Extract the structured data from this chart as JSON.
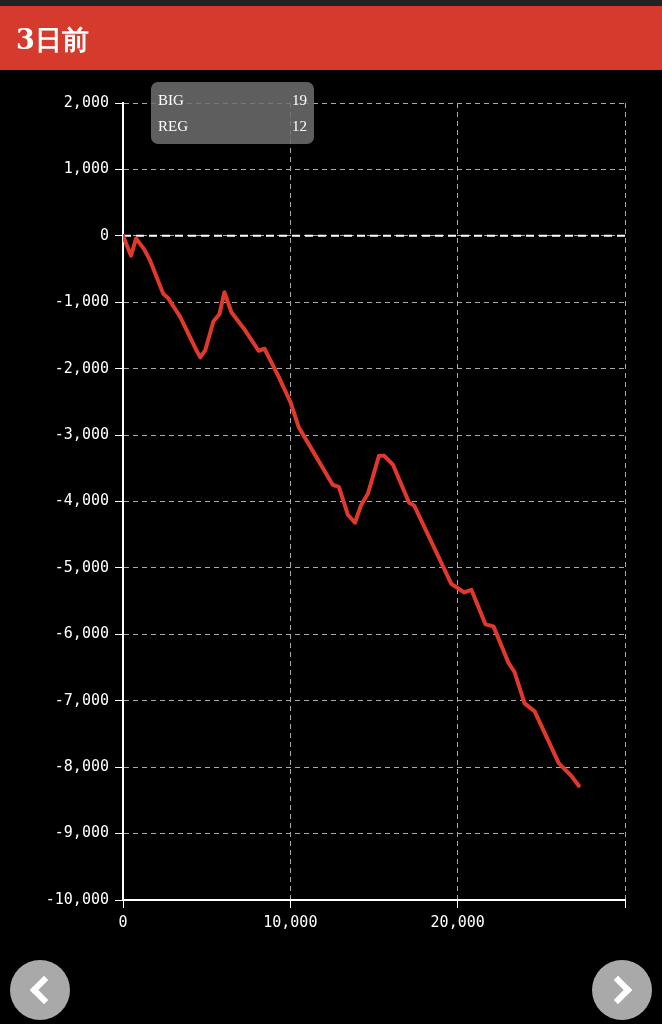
{
  "chart_data": {
    "type": "line",
    "title": "3日前",
    "annotations": [
      "BIG",
      "19",
      "REG",
      "12"
    ],
    "x": [
      0,
      480,
      780,
      1260,
      1620,
      2400,
      2700,
      3420,
      4380,
      4620,
      4920,
      5400,
      5760,
      6060,
      6480,
      7320,
      8100,
      8460,
      9300,
      10020,
      10500,
      12540,
      12900,
      13440,
      13860,
      14220,
      14640,
      15300,
      15600,
      16140,
      17100,
      17400,
      19620,
      20400,
      20820,
      21660,
      22140,
      23040,
      23400,
      24000,
      24600,
      26040,
      26820,
      27240
    ],
    "series": [
      {
        "color": "#e0392b",
        "values": [
          0,
          -300,
          -40,
          -200,
          -370,
          -870,
          -940,
          -1220,
          -1720,
          -1830,
          -1720,
          -1290,
          -1180,
          -850,
          -1150,
          -1430,
          -1730,
          -1700,
          -2120,
          -2510,
          -2880,
          -3750,
          -3780,
          -4200,
          -4320,
          -4060,
          -3880,
          -3310,
          -3310,
          -3450,
          -4020,
          -4060,
          -5240,
          -5370,
          -5330,
          -5850,
          -5880,
          -6430,
          -6570,
          -7040,
          -7160,
          -7940,
          -8140,
          -8280
        ]
      }
    ],
    "xlim": [
      0,
      30000
    ],
    "xticks": [
      0,
      {
        "value": 10000,
        "label": "10,000"
      },
      {
        "value": 20000,
        "label": "20,000"
      },
      {
        "value": 30000,
        "label": null
      }
    ],
    "ylim": [
      -10000,
      2000
    ],
    "yticks": [
      {
        "value": -10000,
        "label": "-10,000"
      },
      {
        "value": -9000,
        "label": "-9,000"
      },
      {
        "value": -8000,
        "label": "-8,000"
      },
      {
        "value": -7000,
        "label": "-7,000"
      },
      {
        "value": -6000,
        "label": "-6,000"
      },
      {
        "value": -5000,
        "label": "-5,000"
      },
      {
        "value": -4000,
        "label": "-4,000"
      },
      {
        "value": -3000,
        "label": "-3,000"
      },
      {
        "value": -2000,
        "label": "-2,000"
      },
      {
        "value": -1000,
        "label": "-1,000"
      },
      0,
      {
        "value": 1000,
        "label": "1,000"
      },
      {
        "value": 2000,
        "label": "2,000"
      }
    ],
    "ref_lines": [
      {
        "axis": "y",
        "value": 0,
        "color": "#ffffff",
        "line_style": "dashed"
      }
    ],
    "grid": true,
    "legend": false,
    "marker": "none",
    "line_style": "solid"
  }
}
